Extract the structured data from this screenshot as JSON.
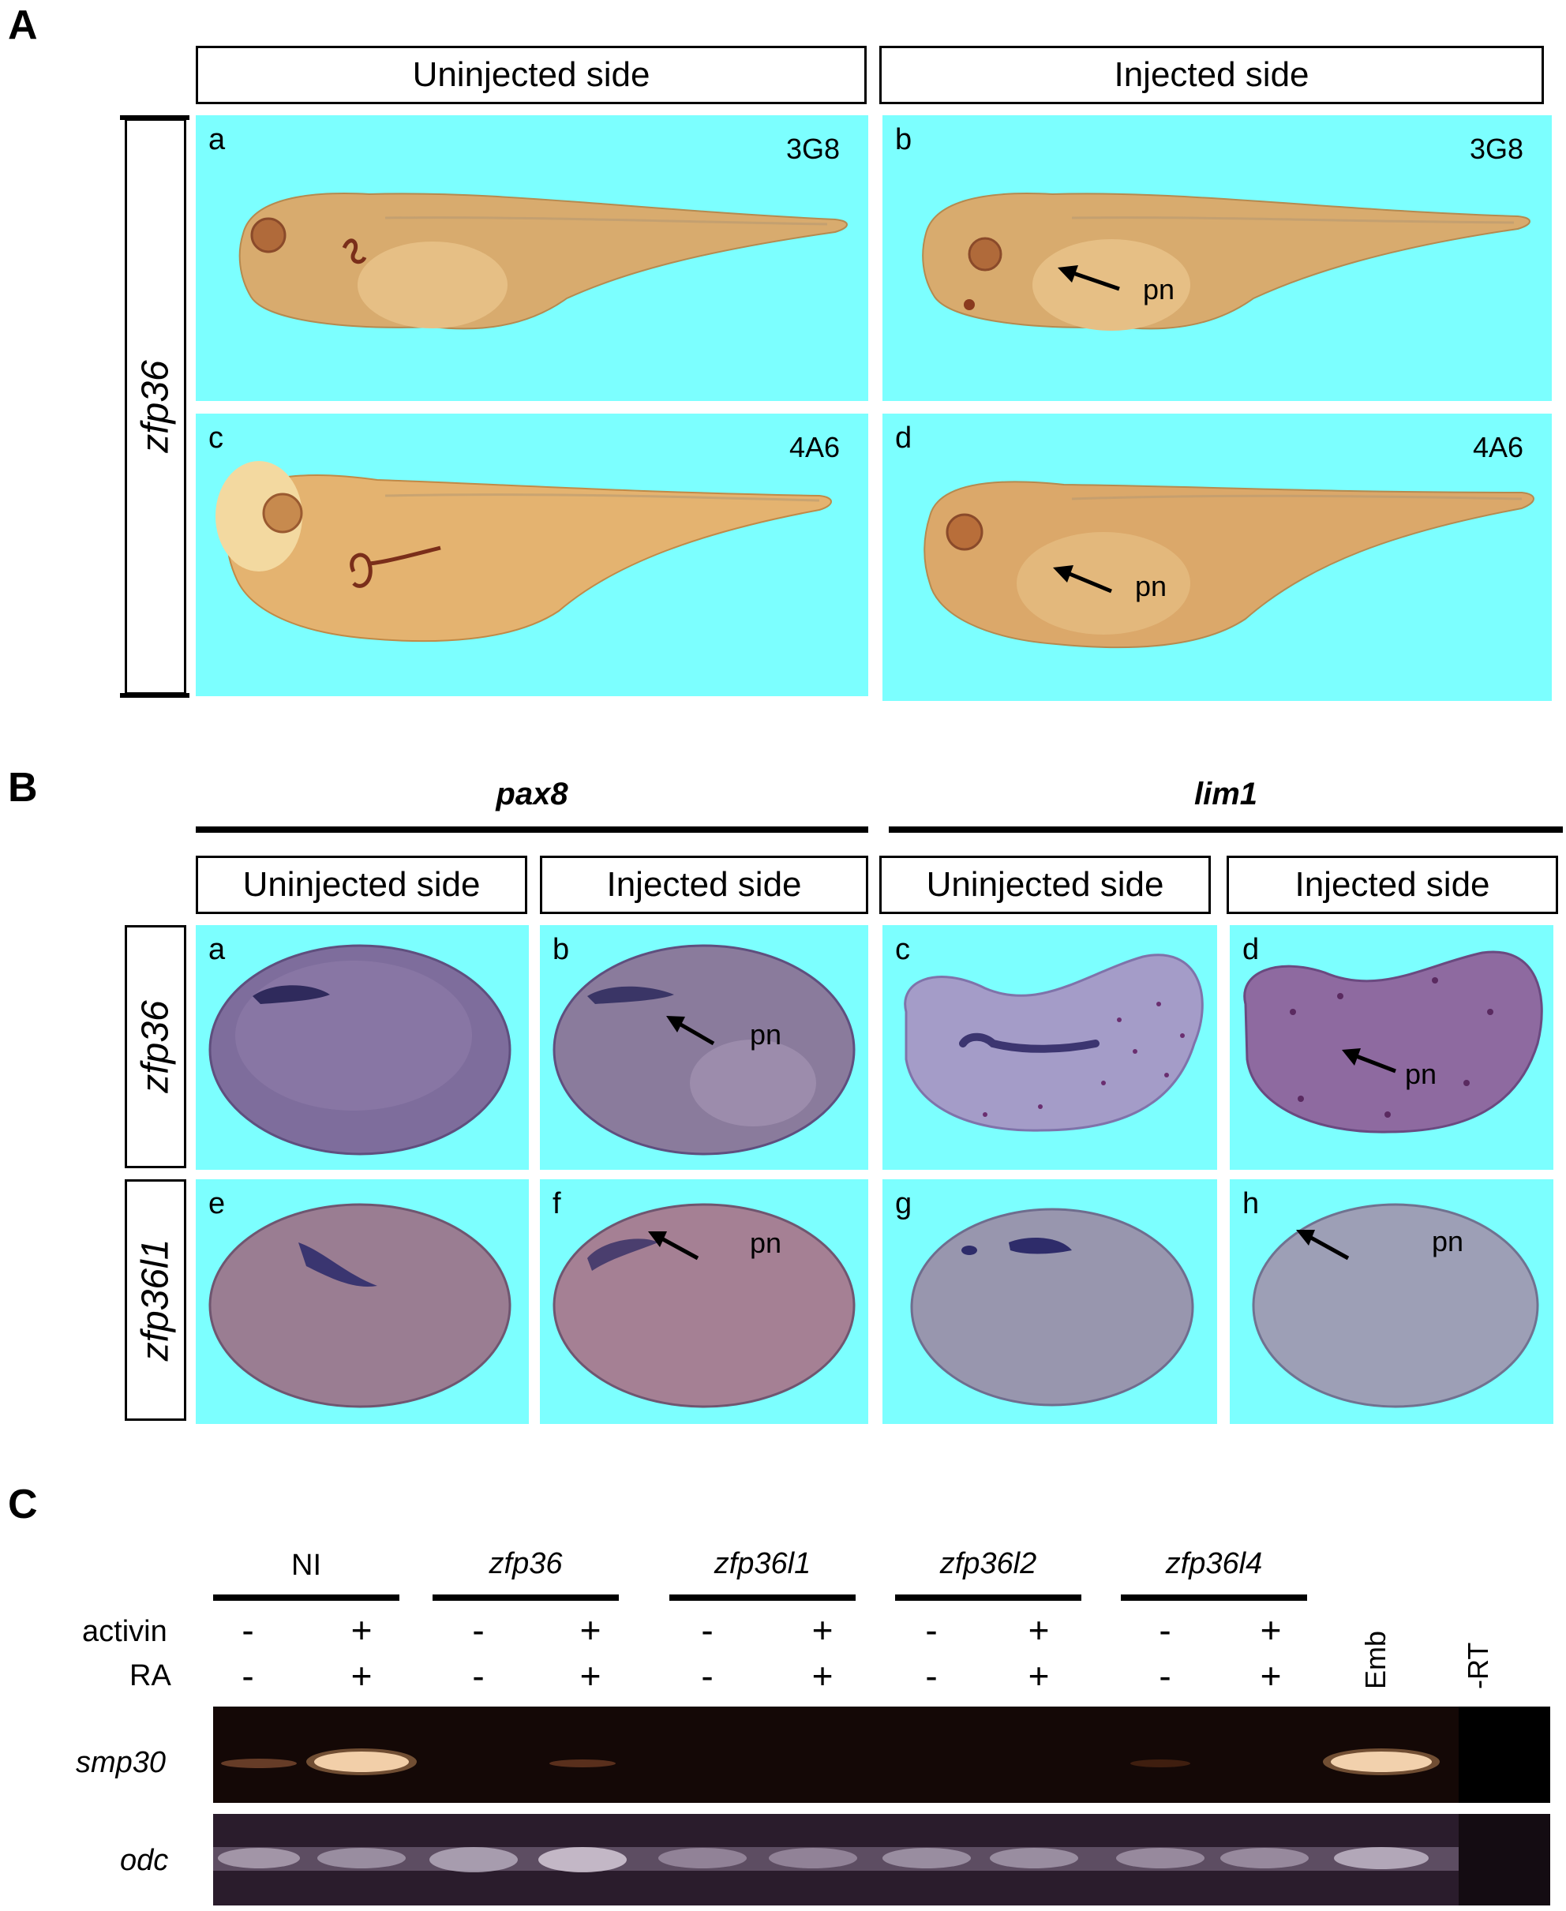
{
  "panel_a": {
    "letter": "A",
    "col_headers": [
      "Uninjected side",
      "Injected side"
    ],
    "row_label": "zfp36",
    "cells": [
      {
        "sub": "a",
        "antibody": "3G8",
        "arrow": ""
      },
      {
        "sub": "b",
        "antibody": "3G8",
        "arrow": "pn"
      },
      {
        "sub": "c",
        "antibody": "4A6",
        "arrow": ""
      },
      {
        "sub": "d",
        "antibody": "4A6",
        "arrow": "pn"
      }
    ]
  },
  "panel_b": {
    "letter": "B",
    "group_headers": [
      "pax8",
      "lim1"
    ],
    "col_headers": [
      "Uninjected side",
      "Injected side",
      "Uninjected side",
      "Injected side"
    ],
    "row_labels": [
      "zfp36",
      "zfp36l1"
    ],
    "cells": [
      {
        "sub": "a",
        "arrow": ""
      },
      {
        "sub": "b",
        "arrow": "pn"
      },
      {
        "sub": "c",
        "arrow": ""
      },
      {
        "sub": "d",
        "arrow": "pn"
      },
      {
        "sub": "e",
        "arrow": ""
      },
      {
        "sub": "f",
        "arrow": "pn"
      },
      {
        "sub": "g",
        "arrow": ""
      },
      {
        "sub": "h",
        "arrow": "pn"
      }
    ]
  },
  "panel_c": {
    "letter": "C",
    "groups": [
      "NI",
      "zfp36",
      "zfp36l1",
      "zfp36l2",
      "zfp36l4"
    ],
    "treatments": [
      "activin",
      "RA"
    ],
    "signs_minus": "-",
    "signs_plus": "+",
    "controls": [
      "Emb",
      "-RT"
    ],
    "gel_rows": [
      "smp30",
      "odc"
    ]
  }
}
